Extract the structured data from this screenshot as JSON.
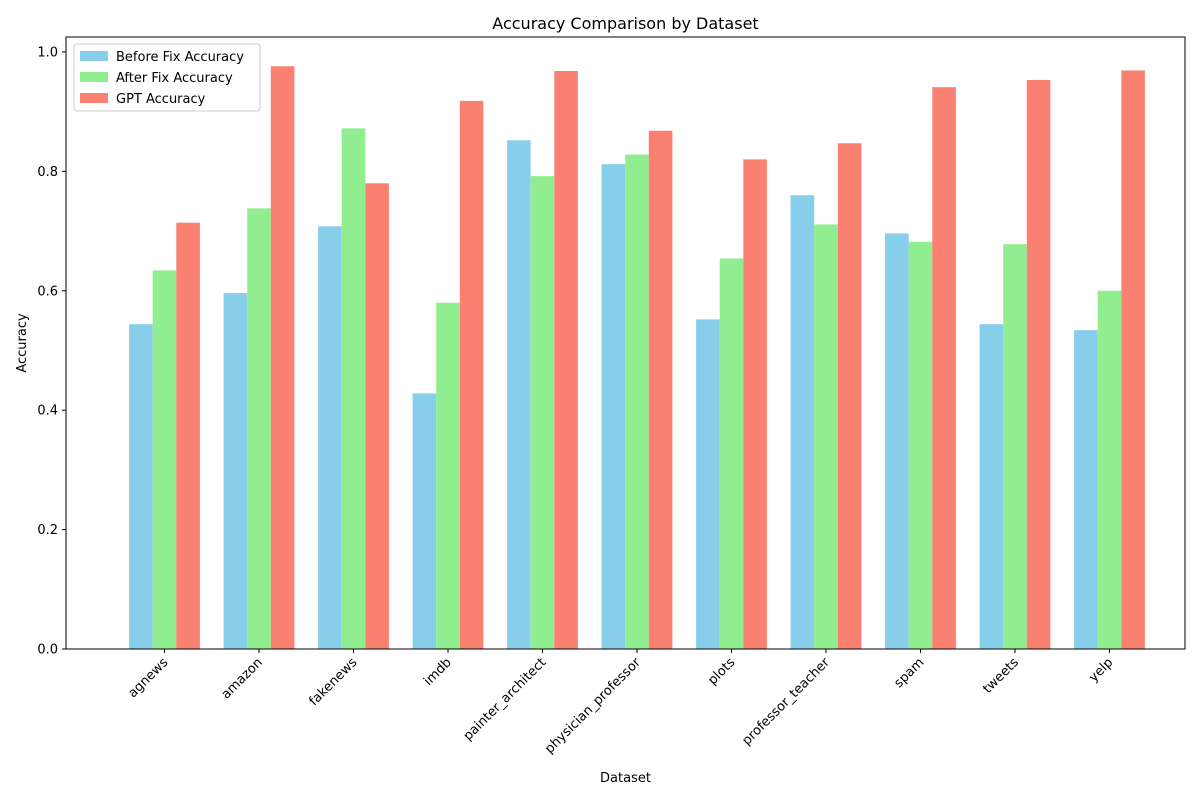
{
  "chart_data": {
    "type": "bar",
    "title": "Accuracy Comparison by Dataset",
    "xlabel": "Dataset",
    "ylabel": "Accuracy",
    "categories": [
      "agnews",
      "amazon",
      "fakenews",
      "imdb",
      "painter_architect",
      "physician_professor",
      "plots",
      "professor_teacher",
      "spam",
      "tweets",
      "yelp"
    ],
    "series": [
      {
        "name": "Before Fix Accuracy",
        "color": "#87ceeb",
        "values": [
          0.544,
          0.596,
          0.708,
          0.428,
          0.852,
          0.812,
          0.552,
          0.76,
          0.696,
          0.544,
          0.534
        ]
      },
      {
        "name": "After Fix Accuracy",
        "color": "#90ee90",
        "values": [
          0.634,
          0.738,
          0.872,
          0.58,
          0.792,
          0.828,
          0.654,
          0.711,
          0.682,
          0.678,
          0.6
        ]
      },
      {
        "name": "GPT Accuracy",
        "color": "#fa8072",
        "values": [
          0.714,
          0.976,
          0.78,
          0.918,
          0.968,
          0.868,
          0.82,
          0.847,
          0.941,
          0.953,
          0.969
        ]
      }
    ],
    "ylim": [
      0,
      1.025
    ],
    "yticks": [
      "0.0",
      "0.2",
      "0.4",
      "0.6",
      "0.8",
      "1.0"
    ],
    "grid": false,
    "legend_position": "top-left"
  }
}
